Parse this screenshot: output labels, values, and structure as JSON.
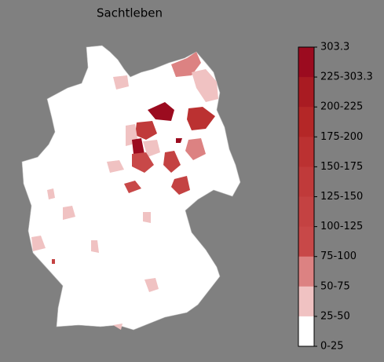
{
  "title": "Sachtleben",
  "legend": {
    "labels": [
      "303.3",
      "225-303.3",
      "200-225",
      "175-200",
      "150-175",
      "125-150",
      "100-125",
      "75-100",
      "50-75",
      "25-50",
      "0-25"
    ],
    "colors": [
      "#9b0b1f",
      "#a91b22",
      "#b42727",
      "#bb3131",
      "#c03a3a",
      "#c44242",
      "#c84848",
      "#dc8282",
      "#f0c2c2",
      "#ffffff"
    ]
  }
}
